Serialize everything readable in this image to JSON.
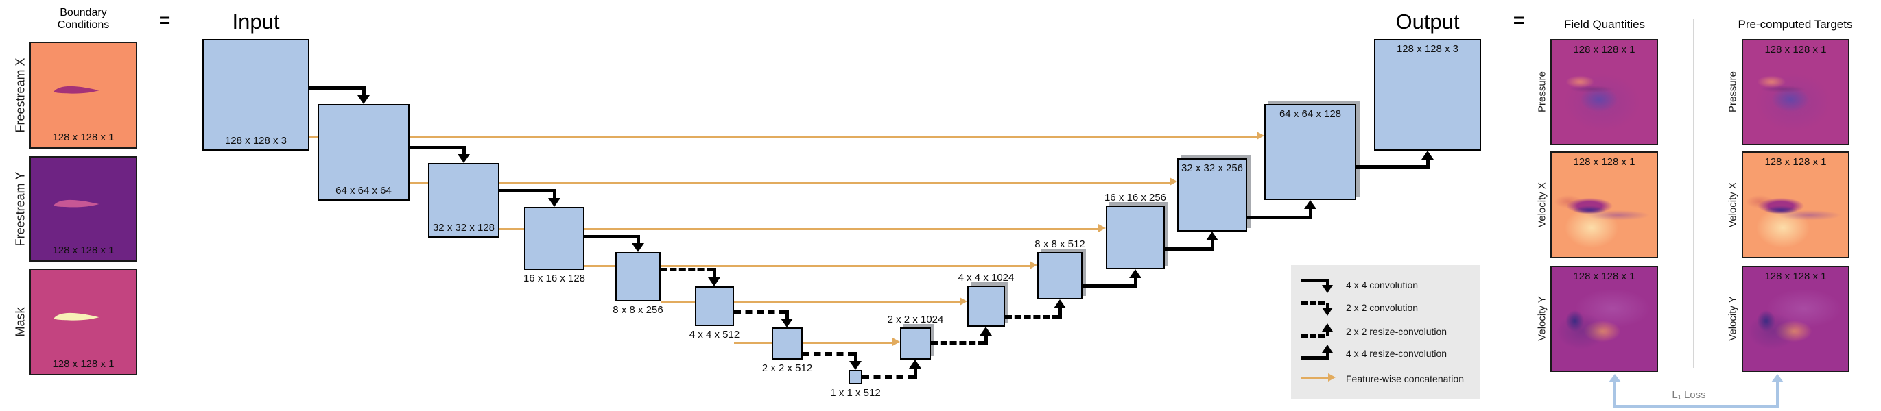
{
  "boundary": {
    "title_line1": "Boundary",
    "title_line2": "Conditions",
    "equals": "=",
    "rows": [
      {
        "label": "Freestream X",
        "dims": "128 x 128 x 1"
      },
      {
        "label": "Freestream Y",
        "dims": "128 x 128 x 1"
      },
      {
        "label": "Mask",
        "dims": "128 x 128 x 1"
      }
    ]
  },
  "network": {
    "input_title": "Input",
    "output_title": "Output",
    "layers": [
      {
        "dims": "128 x 128 x 3"
      },
      {
        "dims": "64 x 64 x 64"
      },
      {
        "dims": "32 x 32 x 128"
      },
      {
        "dims": "16 x 16 x 128"
      },
      {
        "dims": "8 x 8 x 256"
      },
      {
        "dims": "4 x 4 x 512"
      },
      {
        "dims": "2 x 2 x 512"
      },
      {
        "dims": "1 x 1 x 512"
      },
      {
        "dims": "2 x 2 x 1024"
      },
      {
        "dims": "4 x 4 x 1024"
      },
      {
        "dims": "8 x 8 x 512"
      },
      {
        "dims": "16 x 16 x 256"
      },
      {
        "dims": "32 x 32 x 256"
      },
      {
        "dims": "64 x 64 x 128"
      },
      {
        "dims": "128 x 128 x 3"
      }
    ]
  },
  "legend": {
    "items": [
      {
        "label": "4 x 4 convolution"
      },
      {
        "label": "2 x 2 convolution"
      },
      {
        "label": "2 x 2 resize-convolution"
      },
      {
        "label": "4 x 4 resize-convolution"
      },
      {
        "label": "Feature-wise concatenation"
      }
    ]
  },
  "field_quantities": {
    "title": "Field Quantities",
    "equals": "=",
    "rows": [
      {
        "label": "Pressure",
        "dims": "128 x 128 x 1"
      },
      {
        "label": "Velocity X",
        "dims": "128 x 128 x 1"
      },
      {
        "label": "Velocity Y",
        "dims": "128 x 128 x 1"
      }
    ]
  },
  "targets": {
    "title": "Pre-computed Targets",
    "rows": [
      {
        "label": "Pressure",
        "dims": "128 x 128 x 1"
      },
      {
        "label": "Velocity X",
        "dims": "128 x 128 x 1"
      },
      {
        "label": "Velocity Y",
        "dims": "128 x 128 x 1"
      }
    ]
  },
  "loss": {
    "label": "L₁ Loss"
  },
  "colors": {
    "layer_fill": "#aec6e6",
    "layer_border": "#000000",
    "stack_shadow": "#a8abb0",
    "skip_connection": "#e2ab5e",
    "legend_bg": "#e9e9e9",
    "loss_bracket": "#a9c5e5",
    "loss_text": "#7e7e7e",
    "freestream_x_bg": "#f79168",
    "freestream_x_airfoil": "#a43278",
    "freestream_y_bg": "#6e2383",
    "freestream_y_airfoil": "#c75795",
    "mask_bg": "#c34480",
    "mask_airfoil": "#f8f1b7",
    "pressure_bg": "#ad3a8c",
    "velocity_x_bg": "#f89e6e",
    "velocity_y_bg": "#9d3390"
  }
}
